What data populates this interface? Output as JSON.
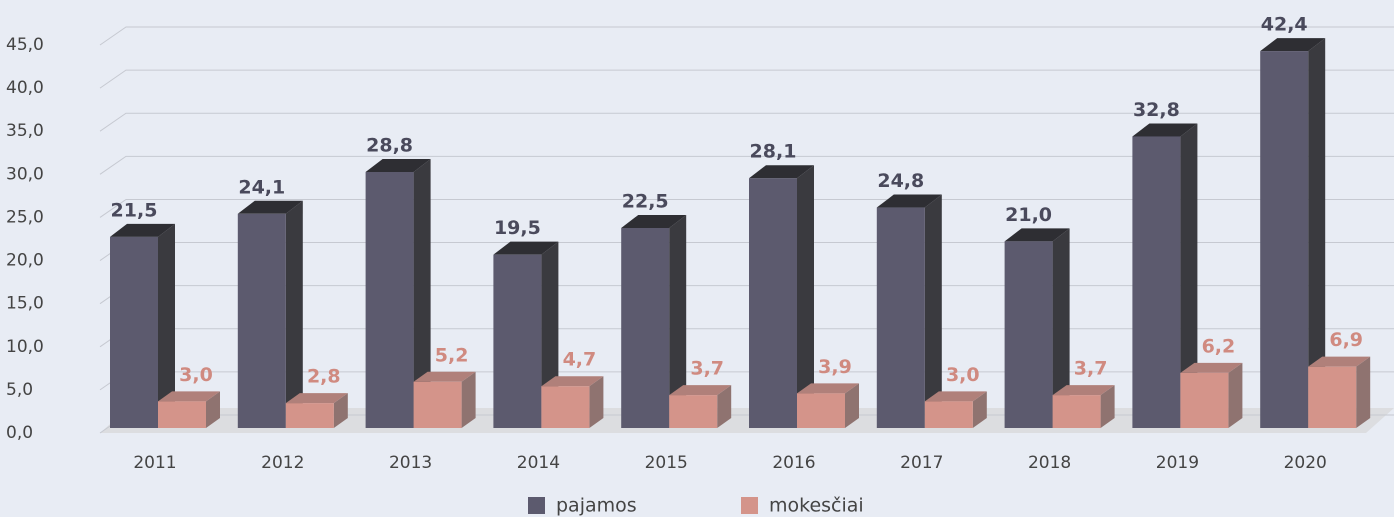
{
  "chart_data": {
    "type": "bar3d",
    "categories": [
      "2011",
      "2012",
      "2013",
      "2014",
      "2015",
      "2016",
      "2017",
      "2018",
      "2019",
      "2020"
    ],
    "series": [
      {
        "name": "pajamos",
        "color": "#5c5a6e",
        "values": [
          21.5,
          24.1,
          28.8,
          19.5,
          22.5,
          28.1,
          24.8,
          21.0,
          32.8,
          42.4
        ],
        "value_labels": [
          "21,5",
          "24,1",
          "28,8",
          "19,5",
          "22,5",
          "28,1",
          "24,8",
          "21,0",
          "32,8",
          "42,4"
        ]
      },
      {
        "name": "mokesčiai",
        "color": "#d4948a",
        "values": [
          3.0,
          2.8,
          5.2,
          4.7,
          3.7,
          3.9,
          3.0,
          3.7,
          6.2,
          6.9
        ],
        "value_labels": [
          "3,0",
          "2,8",
          "5,2",
          "4,7",
          "3,7",
          "3,9",
          "3,0",
          "3,7",
          "6,2",
          "6,9"
        ]
      }
    ],
    "ylim": [
      0,
      45
    ],
    "yticks": [
      {
        "value": 0,
        "label": "0,0"
      },
      {
        "value": 5,
        "label": "5,0"
      },
      {
        "value": 10,
        "label": "10,0"
      },
      {
        "value": 15,
        "label": "15,0"
      },
      {
        "value": 20,
        "label": "20,0"
      },
      {
        "value": 25,
        "label": "25,0"
      },
      {
        "value": 30,
        "label": "30,0"
      },
      {
        "value": 35,
        "label": "35,0"
      },
      {
        "value": 40,
        "label": "40,0"
      },
      {
        "value": 45,
        "label": "45,0"
      }
    ],
    "grid": true,
    "legend": "bottom"
  }
}
